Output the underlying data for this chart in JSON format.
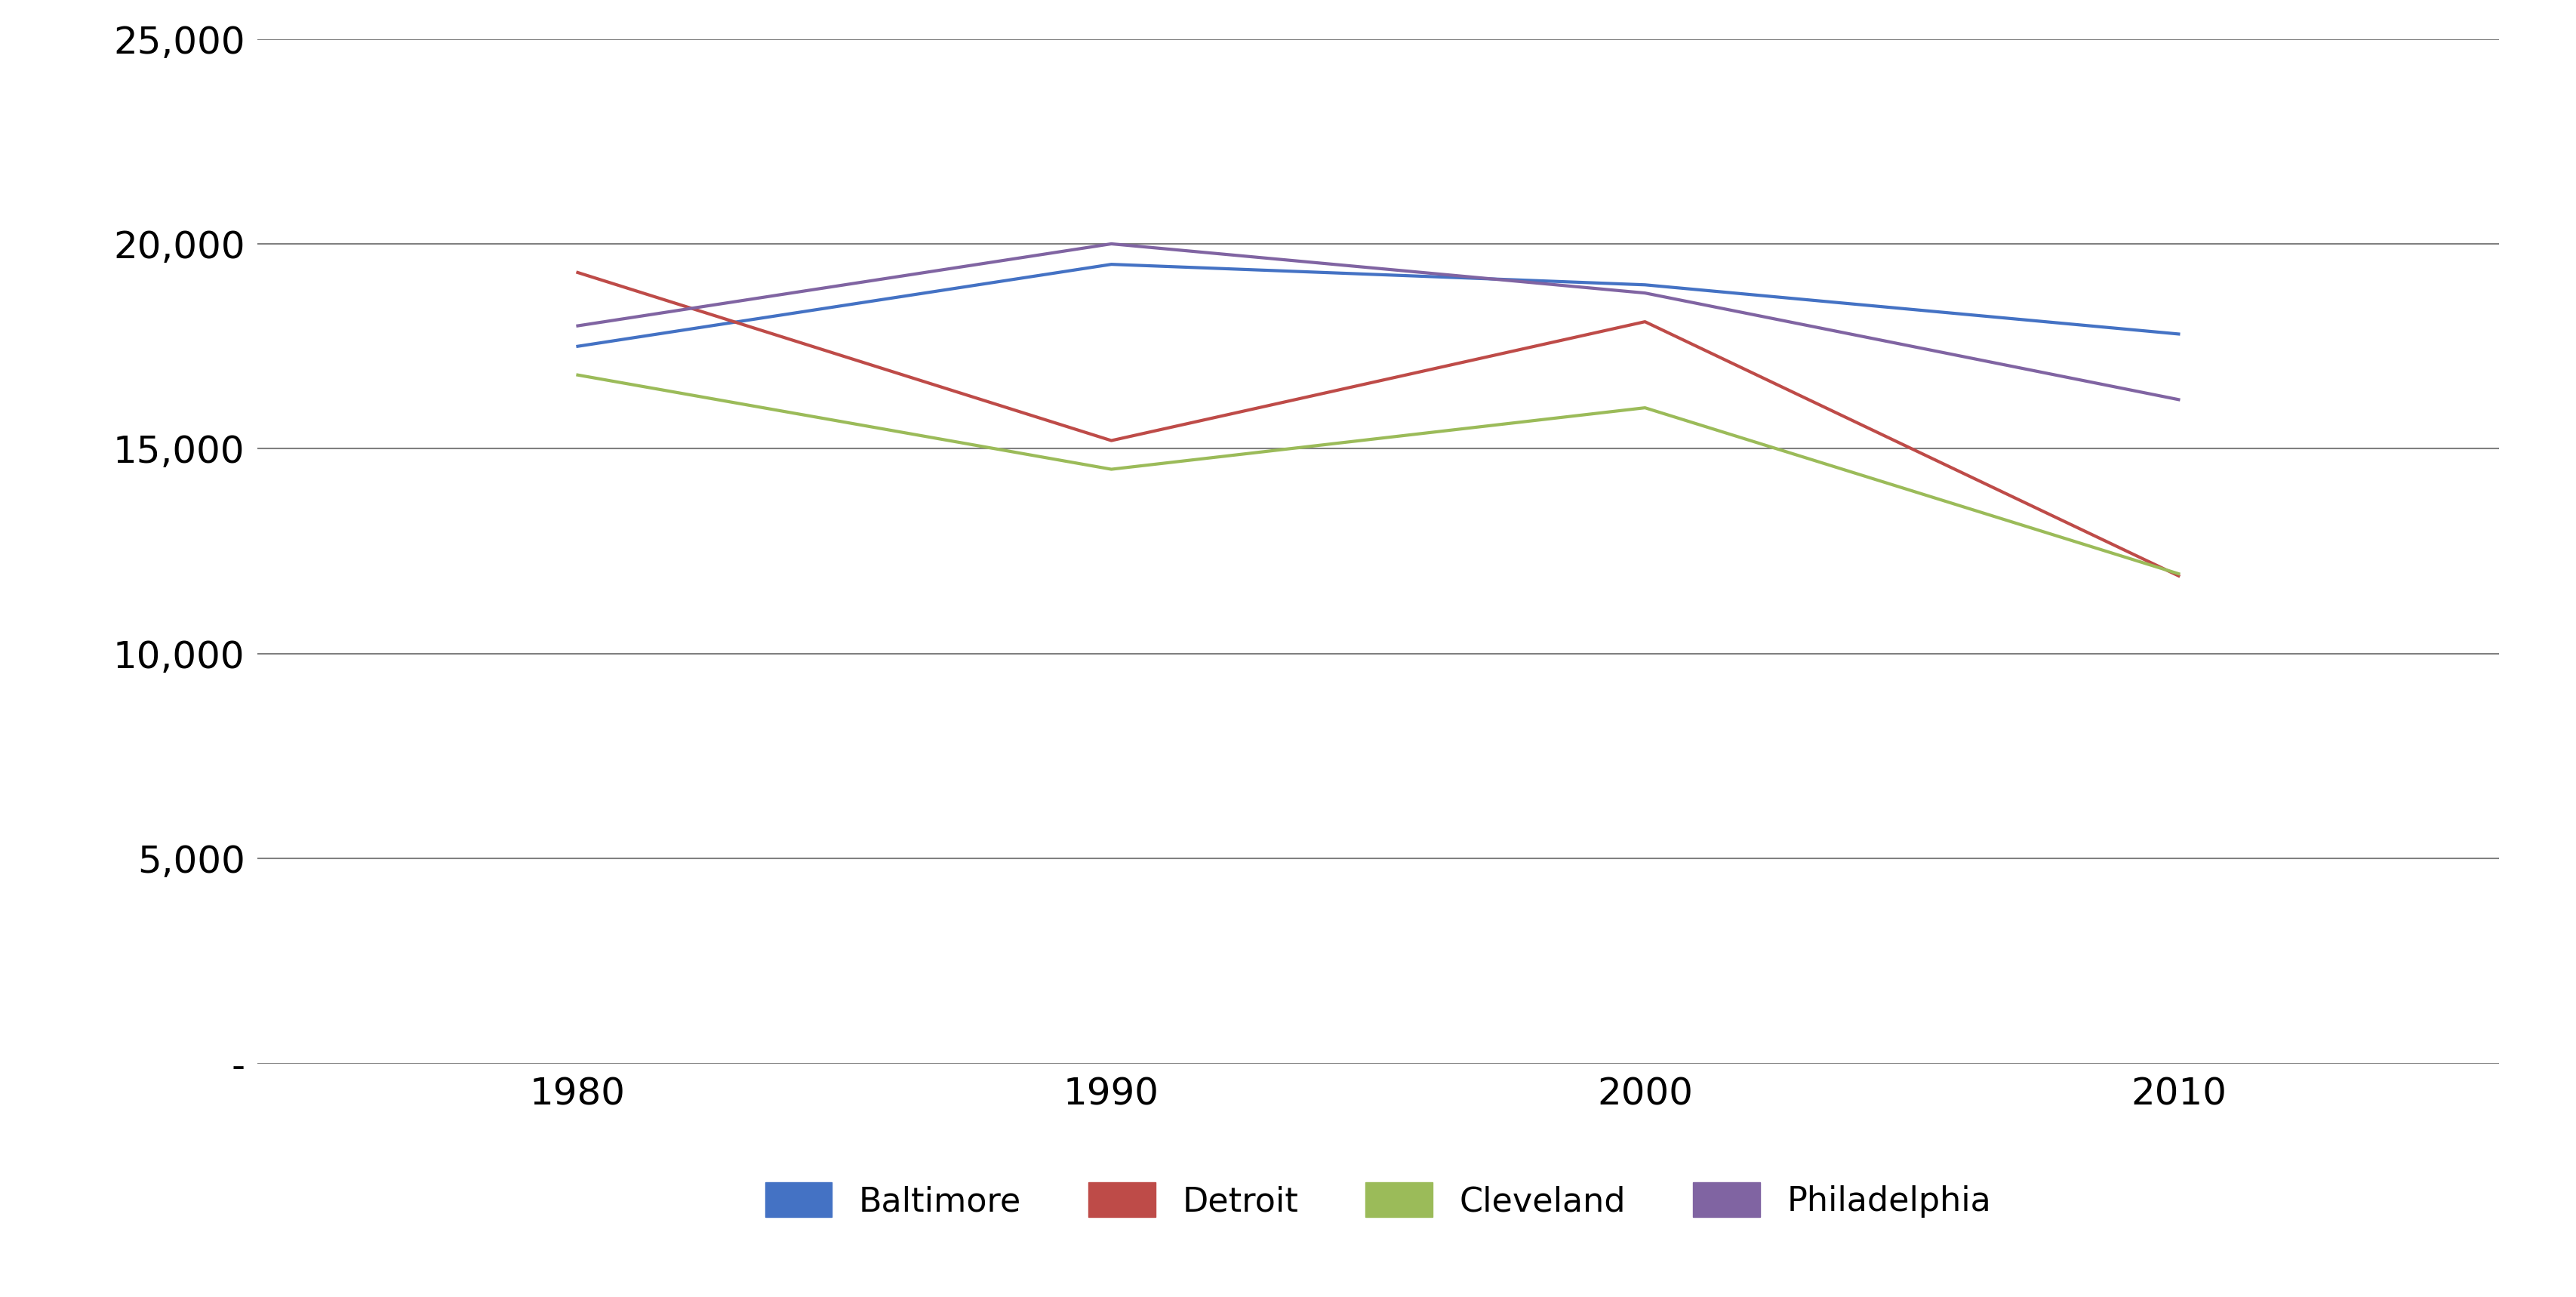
{
  "years": [
    1980,
    1990,
    2000,
    2010
  ],
  "series": {
    "Baltimore": {
      "values": [
        17500,
        19500,
        19000,
        17800
      ],
      "color": "#4472C4"
    },
    "Detroit": {
      "values": [
        19300,
        15200,
        18100,
        11900
      ],
      "color": "#BE4B48"
    },
    "Cleveland": {
      "values": [
        16800,
        14500,
        16000,
        11950
      ],
      "color": "#9BBB59"
    },
    "Philadelphia": {
      "values": [
        18000,
        20000,
        18800,
        16200
      ],
      "color": "#8064A2"
    }
  },
  "ylim": [
    0,
    25000
  ],
  "yticks": [
    0,
    5000,
    10000,
    15000,
    20000,
    25000
  ],
  "ytick_labels": [
    "-",
    "5,000",
    "10,000",
    "15,000",
    "20,000",
    "25,000"
  ],
  "xtick_labels": [
    "1980",
    "1990",
    "2000",
    "2010"
  ],
  "legend_order": [
    "Baltimore",
    "Detroit",
    "Cleveland",
    "Philadelphia"
  ],
  "background_color": "#ffffff",
  "grid_color": "#808080",
  "line_width": 3.0,
  "font_size_ticks": 36,
  "font_size_legend": 32
}
